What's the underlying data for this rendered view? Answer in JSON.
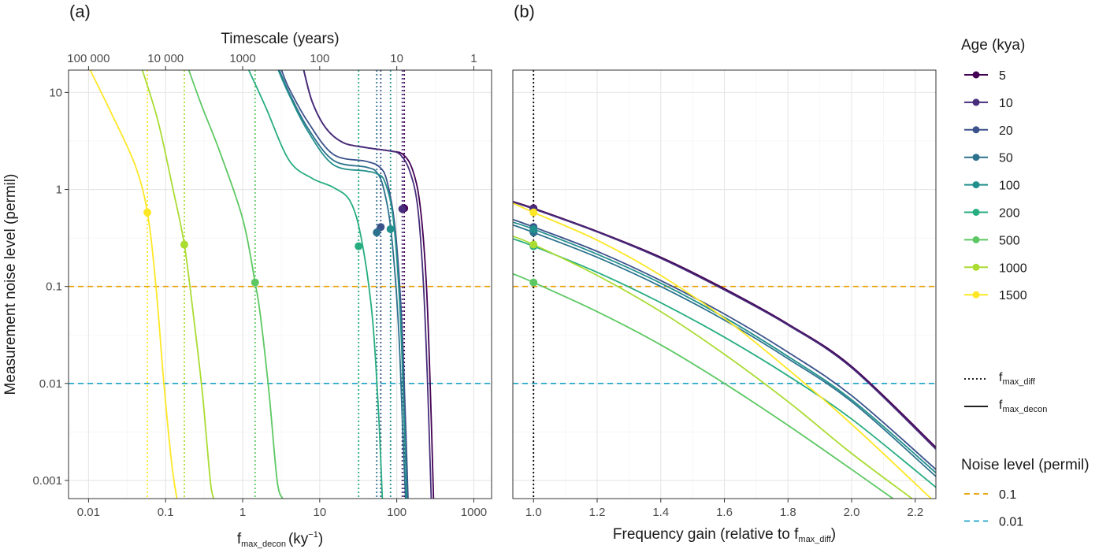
{
  "figure": {
    "panel_a_tag": "(a)",
    "panel_b_tag": "(b)"
  },
  "legend": {
    "age_title": "Age (kya)",
    "type_entries": [
      {
        "symbol": "f",
        "subscript": "max_diff",
        "linetype": "dotted"
      },
      {
        "symbol": "f",
        "subscript": "max_decon",
        "linetype": "solid"
      }
    ],
    "noise_title": "Noise level (permil)"
  },
  "colors": {
    "ages": [
      "#440154",
      "#472D7B",
      "#3B528B",
      "#2C728E",
      "#21908C",
      "#27AD81",
      "#5DC863",
      "#AADC32",
      "#FDE725"
    ],
    "noise_0.1": "#E69F00",
    "noise_0.01": "#1BA3C6",
    "reference": "#000000"
  },
  "chart_data": [
    {
      "type": "line",
      "panel": "a",
      "xlabel_main": "f",
      "xlabel_sub": "max_decon",
      "xlabel_unit": "(ky",
      "xlabel_sup": "−1",
      "xlabel_close": ")",
      "ylabel": "Measurement noise level (permil)",
      "x_scale": "log10",
      "y_scale": "log10",
      "xlim": [
        0.0055,
        1700
      ],
      "ylim": [
        0.00065,
        17
      ],
      "x_ticks": [
        0.01,
        0.1,
        1,
        10,
        100,
        1000
      ],
      "x_tick_labels": [
        "0.01",
        "0.1",
        "1",
        "10",
        "100",
        "1000"
      ],
      "y_ticks": [
        0.001,
        0.01,
        0.1,
        1,
        10
      ],
      "y_tick_labels": [
        "0.001",
        "0.01",
        "0.1",
        "1",
        "10"
      ],
      "secondary_x": {
        "label": "Timescale (years)",
        "ticks_years": [
          100000,
          10000,
          1000,
          100,
          10,
          1
        ],
        "tick_labels": [
          "100 000",
          "10 000",
          "1000",
          "100",
          "10",
          "1"
        ]
      },
      "hlines": [
        {
          "y": 0.1,
          "name": "0.1",
          "linetype": "dashed"
        },
        {
          "y": 0.01,
          "name": "0.01",
          "linetype": "dashed"
        }
      ],
      "grid": true,
      "series": [
        {
          "name": "5",
          "f_diff": 125,
          "noise_at_diff": 0.64,
          "pts": [
            [
              6.2,
              17
            ],
            [
              8,
              8
            ],
            [
              12,
              4.3
            ],
            [
              20,
              3.05
            ],
            [
              40,
              2.7
            ],
            [
              80,
              2.5
            ],
            [
              120,
              2.3
            ],
            [
              160,
              1.6
            ],
            [
              200,
              0.7
            ],
            [
              240,
              0.12
            ],
            [
              270,
              0.011
            ],
            [
              300,
              0.00065
            ]
          ]
        },
        {
          "name": "10",
          "f_diff": 118,
          "noise_at_diff": 0.63,
          "pts": [
            [
              6.2,
              17
            ],
            [
              8,
              8
            ],
            [
              12,
              4.3
            ],
            [
              20,
              3.05
            ],
            [
              40,
              2.7
            ],
            [
              80,
              2.5
            ],
            [
              110,
              2.3
            ],
            [
              145,
              1.6
            ],
            [
              185,
              0.7
            ],
            [
              220,
              0.12
            ],
            [
              250,
              0.011
            ],
            [
              280,
              0.00065
            ]
          ]
        },
        {
          "name": "20",
          "f_diff": 62,
          "noise_at_diff": 0.41,
          "pts": [
            [
              3.2,
              17
            ],
            [
              4,
              11
            ],
            [
              7,
              5
            ],
            [
              15,
              2.3
            ],
            [
              40,
              1.95
            ],
            [
              60,
              1.7
            ],
            [
              75,
              1.2
            ],
            [
              95,
              0.4
            ],
            [
              115,
              0.05
            ],
            [
              130,
              0.004
            ],
            [
              140,
              0.00065
            ]
          ]
        },
        {
          "name": "50",
          "f_diff": 55,
          "noise_at_diff": 0.36,
          "pts": [
            [
              3,
              17
            ],
            [
              4,
              10
            ],
            [
              7,
              4.3
            ],
            [
              15,
              2
            ],
            [
              40,
              1.7
            ],
            [
              55,
              1.5
            ],
            [
              68,
              1
            ],
            [
              85,
              0.35
            ],
            [
              105,
              0.04
            ],
            [
              120,
              0.003
            ],
            [
              130,
              0.00065
            ]
          ]
        },
        {
          "name": "100",
          "f_diff": 83,
          "noise_at_diff": 0.39,
          "pts": [
            [
              2.9,
              17
            ],
            [
              4,
              9.5
            ],
            [
              7,
              4
            ],
            [
              15,
              1.8
            ],
            [
              40,
              1.55
            ],
            [
              55,
              1.45
            ],
            [
              70,
              1.2
            ],
            [
              90,
              0.5
            ],
            [
              110,
              0.06
            ],
            [
              125,
              0.004
            ],
            [
              135,
              0.00065
            ]
          ]
        },
        {
          "name": "200",
          "f_diff": 32,
          "noise_at_diff": 0.26,
          "pts": [
            [
              1.2,
              17
            ],
            [
              2,
              7
            ],
            [
              4,
              2
            ],
            [
              8,
              1.3
            ],
            [
              15,
              1.05
            ],
            [
              25,
              0.75
            ],
            [
              35,
              0.3
            ],
            [
              48,
              0.05
            ],
            [
              58,
              0.005
            ],
            [
              65,
              0.00065
            ]
          ]
        },
        {
          "name": "500",
          "f_diff": 1.45,
          "noise_at_diff": 0.11,
          "pts": [
            [
              0.2,
              17
            ],
            [
              0.3,
              7
            ],
            [
              0.5,
              2.5
            ],
            [
              1,
              0.5
            ],
            [
              1.45,
              0.11
            ],
            [
              1.7,
              0.05
            ],
            [
              2.2,
              0.008
            ],
            [
              2.8,
              0.001
            ],
            [
              3.3,
              0.00065
            ]
          ]
        },
        {
          "name": "1000",
          "f_diff": 0.175,
          "noise_at_diff": 0.27,
          "pts": [
            [
              0.05,
              17
            ],
            [
              0.08,
              5
            ],
            [
              0.125,
              1
            ],
            [
              0.175,
              0.27
            ],
            [
              0.23,
              0.05
            ],
            [
              0.3,
              0.008
            ],
            [
              0.38,
              0.001
            ],
            [
              0.42,
              0.00065
            ]
          ]
        },
        {
          "name": "1500",
          "f_diff": 0.058,
          "noise_at_diff": 0.58,
          "pts": [
            [
              0.0105,
              17
            ],
            [
              0.02,
              6
            ],
            [
              0.04,
              1.8
            ],
            [
              0.058,
              0.58
            ],
            [
              0.075,
              0.1
            ],
            [
              0.095,
              0.01
            ],
            [
              0.12,
              0.0015
            ],
            [
              0.14,
              0.00065
            ]
          ]
        }
      ]
    },
    {
      "type": "line",
      "panel": "b",
      "xlabel": "Frequency gain (relative to f",
      "xlabel_sub": "max_diff",
      "xlabel_close": ")",
      "ylabel": "",
      "x_scale": "linear",
      "y_scale": "log10",
      "xlim": [
        0.935,
        2.265
      ],
      "ylim": [
        0.00065,
        17
      ],
      "x_ticks": [
        1.0,
        1.2,
        1.4,
        1.6,
        1.8,
        2.0,
        2.2
      ],
      "x_tick_labels": [
        "1.0",
        "1.2",
        "1.4",
        "1.6",
        "1.8",
        "2.0",
        "2.2"
      ],
      "vline_x": 1.0,
      "hlines": [
        {
          "y": 0.1,
          "name": "0.1",
          "linetype": "dashed"
        },
        {
          "y": 0.01,
          "name": "0.01",
          "linetype": "dashed"
        }
      ],
      "grid": true,
      "series": [
        {
          "name": "5",
          "y0": 0.64,
          "pts": [
            [
              0.935,
              0.75
            ],
            [
              1.0,
              0.64
            ],
            [
              1.2,
              0.37
            ],
            [
              1.4,
              0.2
            ],
            [
              1.6,
              0.095
            ],
            [
              1.8,
              0.041
            ],
            [
              2.0,
              0.015
            ],
            [
              2.265,
              0.0022
            ]
          ]
        },
        {
          "name": "10",
          "y0": 0.63,
          "pts": [
            [
              0.935,
              0.74
            ],
            [
              1.0,
              0.63
            ],
            [
              1.2,
              0.365
            ],
            [
              1.4,
              0.195
            ],
            [
              1.6,
              0.092
            ],
            [
              1.8,
              0.04
            ],
            [
              2.0,
              0.0145
            ],
            [
              2.265,
              0.0021
            ]
          ]
        },
        {
          "name": "20",
          "y0": 0.41,
          "pts": [
            [
              0.935,
              0.49
            ],
            [
              1.0,
              0.41
            ],
            [
              1.2,
              0.23
            ],
            [
              1.4,
              0.115
            ],
            [
              1.6,
              0.052
            ],
            [
              1.8,
              0.021
            ],
            [
              2.0,
              0.0075
            ],
            [
              2.265,
              0.0013
            ]
          ]
        },
        {
          "name": "50",
          "y0": 0.36,
          "pts": [
            [
              0.935,
              0.43
            ],
            [
              1.0,
              0.36
            ],
            [
              1.2,
              0.2
            ],
            [
              1.4,
              0.1
            ],
            [
              1.6,
              0.045
            ],
            [
              1.8,
              0.018
            ],
            [
              2.0,
              0.0065
            ],
            [
              2.265,
              0.0011
            ]
          ]
        },
        {
          "name": "100",
          "y0": 0.39,
          "pts": [
            [
              0.935,
              0.46
            ],
            [
              1.0,
              0.39
            ],
            [
              1.2,
              0.215
            ],
            [
              1.4,
              0.108
            ],
            [
              1.6,
              0.048
            ],
            [
              1.8,
              0.019
            ],
            [
              2.0,
              0.0068
            ],
            [
              2.265,
              0.0012
            ]
          ]
        },
        {
          "name": "200",
          "y0": 0.26,
          "pts": [
            [
              0.935,
              0.31
            ],
            [
              1.0,
              0.26
            ],
            [
              1.2,
              0.14
            ],
            [
              1.4,
              0.068
            ],
            [
              1.6,
              0.03
            ],
            [
              1.8,
              0.012
            ],
            [
              2.0,
              0.0043
            ],
            [
              2.265,
              0.00085
            ]
          ]
        },
        {
          "name": "500",
          "y0": 0.11,
          "pts": [
            [
              0.935,
              0.135
            ],
            [
              1.0,
              0.11
            ],
            [
              1.2,
              0.055
            ],
            [
              1.4,
              0.025
            ],
            [
              1.6,
              0.01
            ],
            [
              1.8,
              0.0037
            ],
            [
              2.0,
              0.0013
            ],
            [
              2.13,
              0.00065
            ]
          ]
        },
        {
          "name": "1000",
          "y0": 0.27,
          "pts": [
            [
              0.935,
              0.33
            ],
            [
              1.0,
              0.27
            ],
            [
              1.2,
              0.13
            ],
            [
              1.4,
              0.055
            ],
            [
              1.6,
              0.02
            ],
            [
              1.8,
              0.0065
            ],
            [
              2.0,
              0.0019
            ],
            [
              2.19,
              0.00065
            ]
          ]
        },
        {
          "name": "1500",
          "y0": 0.58,
          "pts": [
            [
              0.935,
              0.72
            ],
            [
              1.0,
              0.58
            ],
            [
              1.2,
              0.3
            ],
            [
              1.4,
              0.13
            ],
            [
              1.6,
              0.047
            ],
            [
              1.8,
              0.014
            ],
            [
              2.0,
              0.0038
            ],
            [
              2.25,
              0.00065
            ]
          ]
        }
      ]
    }
  ]
}
